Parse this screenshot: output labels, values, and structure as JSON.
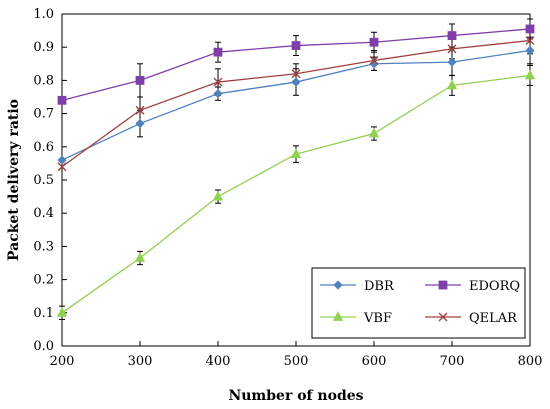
{
  "chart_data": {
    "type": "line",
    "title": "",
    "xlabel": "Number of nodes",
    "ylabel": "Packet delivery ratio",
    "x": [
      200,
      300,
      400,
      500,
      600,
      700,
      800
    ],
    "xlim": [
      200,
      800
    ],
    "ylim": [
      0.0,
      1.0
    ],
    "x_ticks": [
      "200",
      "300",
      "400",
      "500",
      "600",
      "700",
      "800"
    ],
    "y_ticks": [
      "0.0",
      "0.1",
      "0.2",
      "0.3",
      "0.4",
      "0.5",
      "0.6",
      "0.7",
      "0.8",
      "0.9",
      "1.0"
    ],
    "grid": false,
    "legend_position": "bottom-right",
    "series": [
      {
        "name": "DBR",
        "color": "#4f81bd",
        "marker": "diamond",
        "values": [
          0.56,
          0.67,
          0.76,
          0.795,
          0.85,
          0.855,
          0.89
        ],
        "errors": [
          0.0,
          0.04,
          0.02,
          0.04,
          0.02,
          0.04,
          0.04
        ]
      },
      {
        "name": "EDORQ",
        "color": "#7f3fa8",
        "marker": "square",
        "values": [
          0.74,
          0.8,
          0.885,
          0.905,
          0.915,
          0.935,
          0.955
        ],
        "errors": [
          0.0,
          0.05,
          0.03,
          0.03,
          0.03,
          0.035,
          0.03
        ]
      },
      {
        "name": "VBF",
        "color": "#92d050",
        "marker": "triangle",
        "values": [
          0.1,
          0.265,
          0.45,
          0.578,
          0.64,
          0.785,
          0.815
        ],
        "errors": [
          0.02,
          0.02,
          0.02,
          0.025,
          0.02,
          0.03,
          0.03
        ]
      },
      {
        "name": "QELAR",
        "color": "#a0403c",
        "marker": "x",
        "values": [
          0.54,
          0.71,
          0.795,
          0.82,
          0.86,
          0.895,
          0.92
        ],
        "errors": [
          0.0,
          0.04,
          0.04,
          0.03,
          0.03,
          0.03,
          0.04
        ]
      }
    ],
    "legend_layout": [
      [
        "DBR",
        "EDORQ"
      ],
      [
        "VBF",
        "QELAR"
      ]
    ]
  }
}
